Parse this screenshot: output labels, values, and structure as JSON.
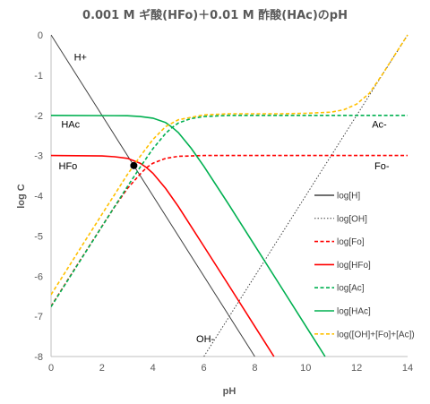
{
  "chart_data": {
    "type": "line",
    "title": "0.001 M ギ酸(HFo)＋0.01 M 酢酸(HAc)のpH",
    "xlabel": "pH",
    "ylabel": "log C",
    "xlim": [
      0,
      14
    ],
    "ylim": [
      -8,
      0
    ],
    "x_ticks": [
      0,
      2,
      4,
      6,
      8,
      10,
      12,
      14
    ],
    "y_ticks": [
      0,
      -1,
      -2,
      -3,
      -4,
      -5,
      -6,
      -7,
      -8
    ],
    "x_tick_labels": [
      "0",
      "2",
      "4",
      "6",
      "8",
      "10",
      "12",
      "14"
    ],
    "y_tick_labels": [
      "0",
      "-1",
      "-2",
      "-3",
      "-4",
      "-5",
      "-6",
      "-7",
      "-8"
    ],
    "grid": false,
    "legend_position": "right",
    "constants": {
      "C_HFo": 0.001,
      "C_HAc": 0.01,
      "pKa_HFo": 3.75,
      "pKa_HAc": 4.76,
      "pKw": 14
    },
    "series": [
      {
        "name": "log[H]",
        "color": "#404040",
        "dash": "solid",
        "points": [
          [
            0,
            0
          ],
          [
            8,
            -8
          ]
        ]
      },
      {
        "name": "log[OH]",
        "color": "#404040",
        "dash": "dotted",
        "points": [
          [
            6,
            -8
          ],
          [
            14,
            0
          ]
        ]
      },
      {
        "name": "log[Fo]",
        "color": "#ff0000",
        "dash": "dashed",
        "points": [
          [
            0,
            -6.75
          ],
          [
            1,
            -5.75
          ],
          [
            2,
            -4.76
          ],
          [
            2.5,
            -4.27
          ],
          [
            3,
            -3.82
          ],
          [
            3.5,
            -3.46
          ],
          [
            3.75,
            -3.3
          ],
          [
            4,
            -3.19
          ],
          [
            4.5,
            -3.07
          ],
          [
            5,
            -3.02
          ],
          [
            6,
            -3.0
          ],
          [
            14,
            -3.0
          ]
        ]
      },
      {
        "name": "log[HFo]",
        "color": "#ff0000",
        "dash": "solid",
        "points": [
          [
            0,
            -3.0
          ],
          [
            2,
            -3.01
          ],
          [
            2.5,
            -3.03
          ],
          [
            3,
            -3.07
          ],
          [
            3.5,
            -3.19
          ],
          [
            3.75,
            -3.3
          ],
          [
            4,
            -3.44
          ],
          [
            4.5,
            -3.82
          ],
          [
            5,
            -4.27
          ],
          [
            6,
            -5.26
          ],
          [
            7,
            -6.25
          ],
          [
            8,
            -7.25
          ],
          [
            8.75,
            -8.0
          ]
        ]
      },
      {
        "name": "log[Ac]",
        "color": "#00b050",
        "dash": "dashed",
        "points": [
          [
            0,
            -6.76
          ],
          [
            1,
            -5.76
          ],
          [
            2,
            -4.76
          ],
          [
            3,
            -3.77
          ],
          [
            3.5,
            -3.29
          ],
          [
            4,
            -2.83
          ],
          [
            4.5,
            -2.45
          ],
          [
            4.76,
            -2.3
          ],
          [
            5,
            -2.19
          ],
          [
            5.5,
            -2.08
          ],
          [
            6,
            -2.03
          ],
          [
            7,
            -2.0
          ],
          [
            14,
            -2.0
          ]
        ]
      },
      {
        "name": "log[HAc]",
        "color": "#00b050",
        "dash": "solid",
        "points": [
          [
            0,
            -2.0
          ],
          [
            3,
            -2.01
          ],
          [
            3.5,
            -2.03
          ],
          [
            4,
            -2.07
          ],
          [
            4.5,
            -2.18
          ],
          [
            4.76,
            -2.3
          ],
          [
            5,
            -2.43
          ],
          [
            5.5,
            -2.82
          ],
          [
            6,
            -3.27
          ],
          [
            7,
            -4.24
          ],
          [
            8,
            -5.24
          ],
          [
            9,
            -6.24
          ],
          [
            10,
            -7.24
          ],
          [
            10.76,
            -8.0
          ]
        ]
      },
      {
        "name": "log([OH]+[Fo]+[Ac])",
        "color": "#ffc000",
        "dash": "dashed",
        "points": [
          [
            0,
            -6.46
          ],
          [
            1,
            -5.46
          ],
          [
            2,
            -4.46
          ],
          [
            3,
            -3.47
          ],
          [
            3.5,
            -3.02
          ],
          [
            4,
            -2.6
          ],
          [
            4.5,
            -2.28
          ],
          [
            5,
            -2.11
          ],
          [
            6,
            -1.99
          ],
          [
            7,
            -1.96
          ],
          [
            8,
            -1.96
          ],
          [
            9,
            -1.96
          ],
          [
            10,
            -1.95
          ],
          [
            11,
            -1.92
          ],
          [
            11.5,
            -1.86
          ],
          [
            12,
            -1.72
          ],
          [
            12.5,
            -1.45
          ],
          [
            13,
            -0.99
          ],
          [
            14,
            0.0
          ]
        ]
      }
    ],
    "marker": {
      "x": 3.25,
      "y": -3.25,
      "color": "#000000"
    },
    "annotations": [
      {
        "text": "H+",
        "x": 0.9,
        "y": -0.55
      },
      {
        "text": "HAc",
        "x": 0.4,
        "y": -2.22
      },
      {
        "text": "HFo",
        "x": 0.3,
        "y": -3.25
      },
      {
        "text": "Ac-",
        "x": 12.6,
        "y": -2.22
      },
      {
        "text": "Fo-",
        "x": 12.7,
        "y": -3.25
      },
      {
        "text": "OH-",
        "x": 5.7,
        "y": -7.55
      }
    ]
  }
}
